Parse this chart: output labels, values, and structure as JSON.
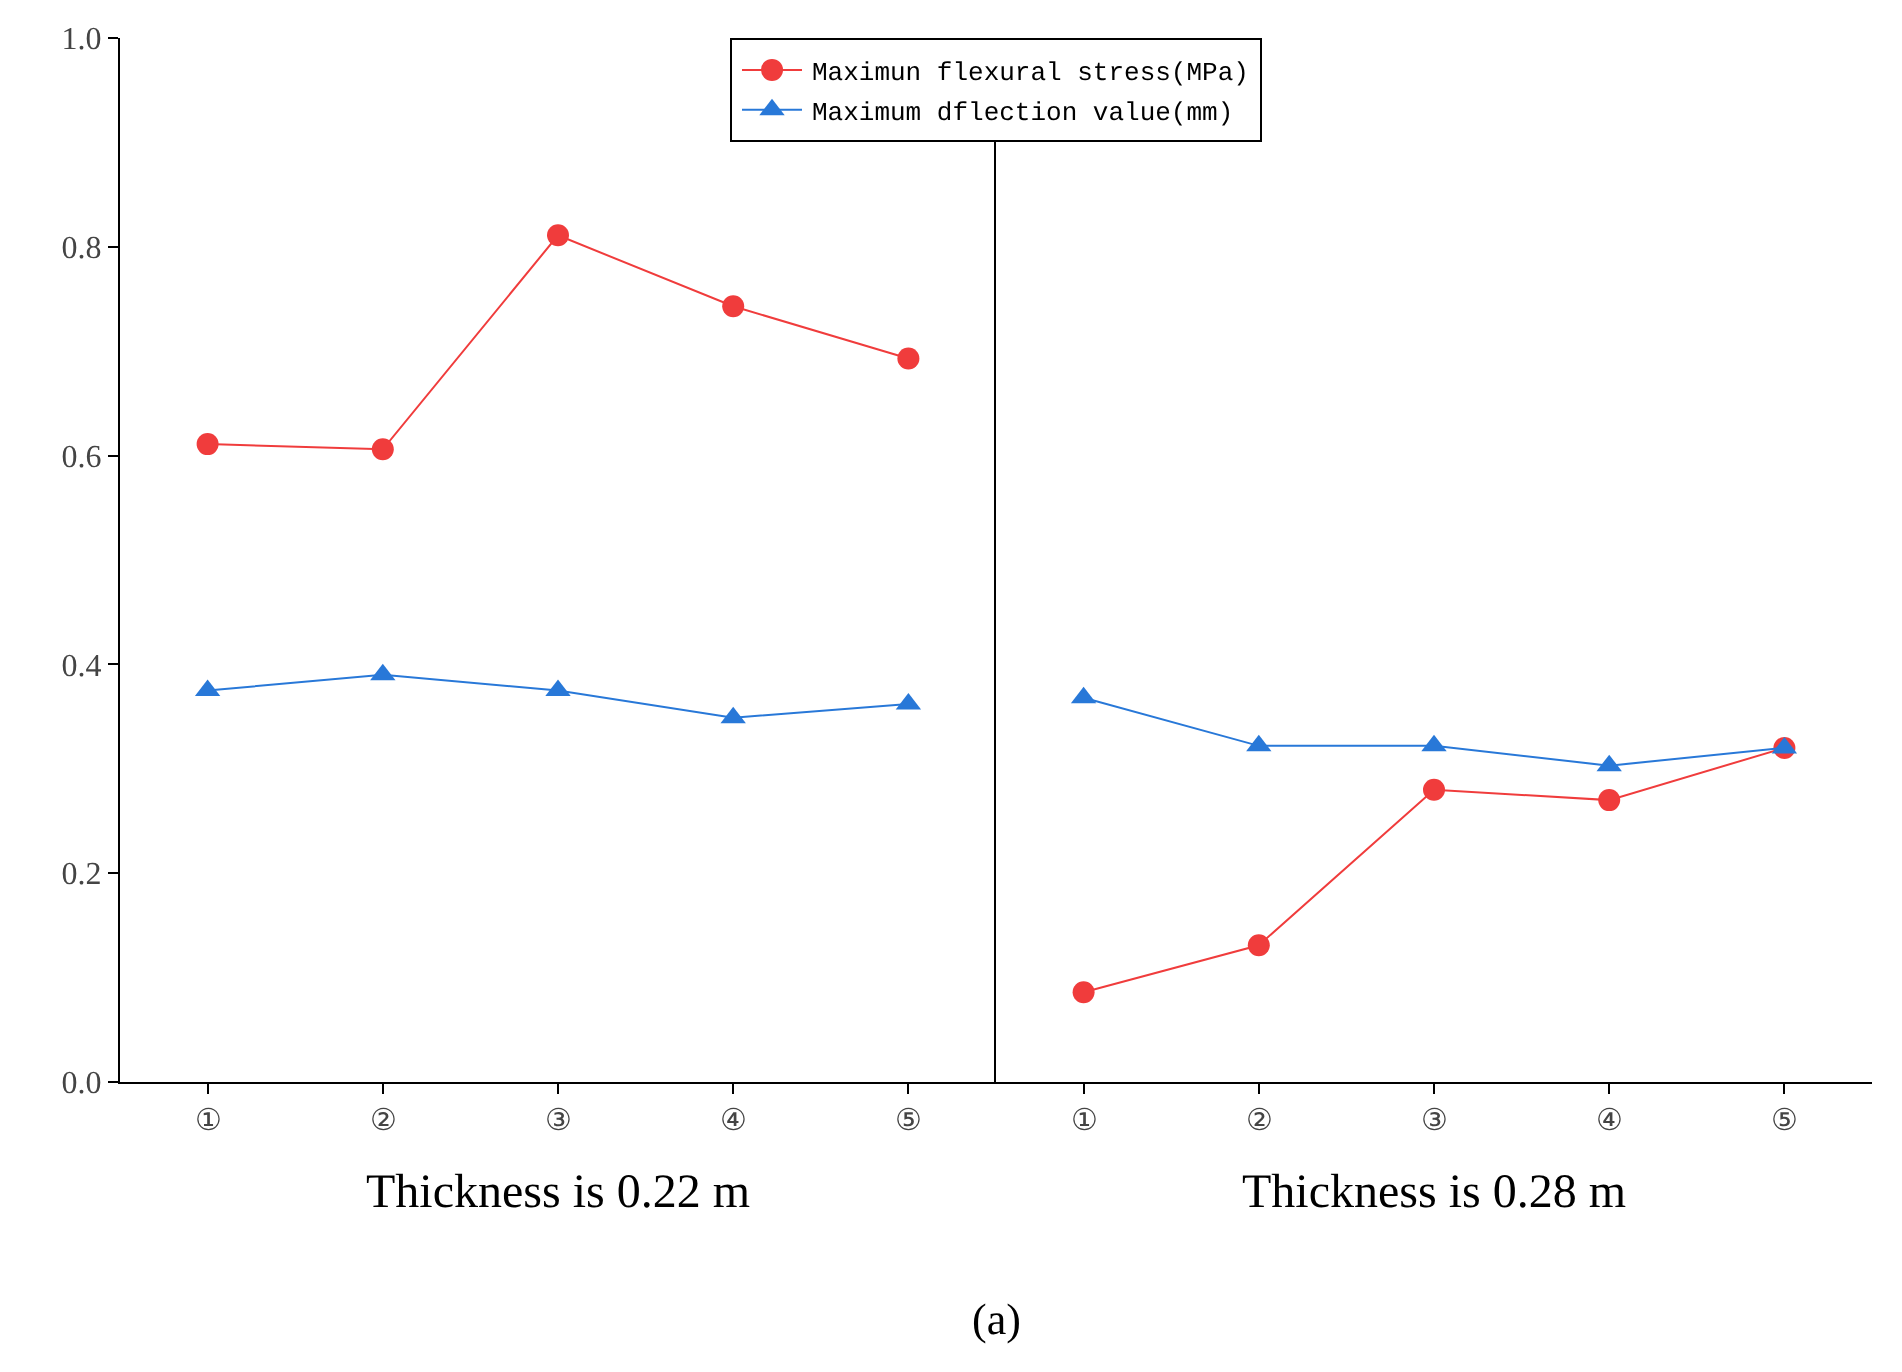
{
  "chart_data": [
    {
      "type": "line",
      "xlabel": "Thickness is 0.22 m",
      "categories": [
        "①",
        "②",
        "③",
        "④",
        "⑤"
      ],
      "series": [
        {
          "name": "Maximun flexural stress(MPa)",
          "color": "#f03c3c",
          "marker": "circle",
          "values": [
            0.611,
            0.606,
            0.811,
            0.743,
            0.693
          ]
        },
        {
          "name": "Maximum dflection value(mm)",
          "color": "#2878d8",
          "marker": "triangle",
          "values": [
            0.375,
            0.39,
            0.375,
            0.349,
            0.362
          ]
        }
      ],
      "ylim": [
        0,
        1
      ],
      "yticks": [
        {
          "value": 0,
          "label": "0.0"
        },
        0.2,
        0.4,
        0.6,
        0.8,
        {
          "value": 1,
          "label": "1.0"
        }
      ],
      "legend": "top",
      "annotations": [
        "(a)"
      ]
    },
    {
      "type": "line",
      "xlabel": "Thickness is 0.28 m",
      "categories": [
        "①",
        "②",
        "③",
        "④",
        "⑤"
      ],
      "series": [
        {
          "color": "#f03c3c",
          "marker": "circle",
          "values": [
            0.086,
            0.131,
            0.28,
            0.27,
            0.32
          ]
        },
        {
          "color": "#2878d8",
          "marker": "triangle",
          "values": [
            0.368,
            0.322,
            0.322,
            0.303,
            0.32
          ]
        }
      ],
      "ylim": [
        0,
        1
      ],
      "tick_labels": "x",
      "legend": false
    }
  ]
}
